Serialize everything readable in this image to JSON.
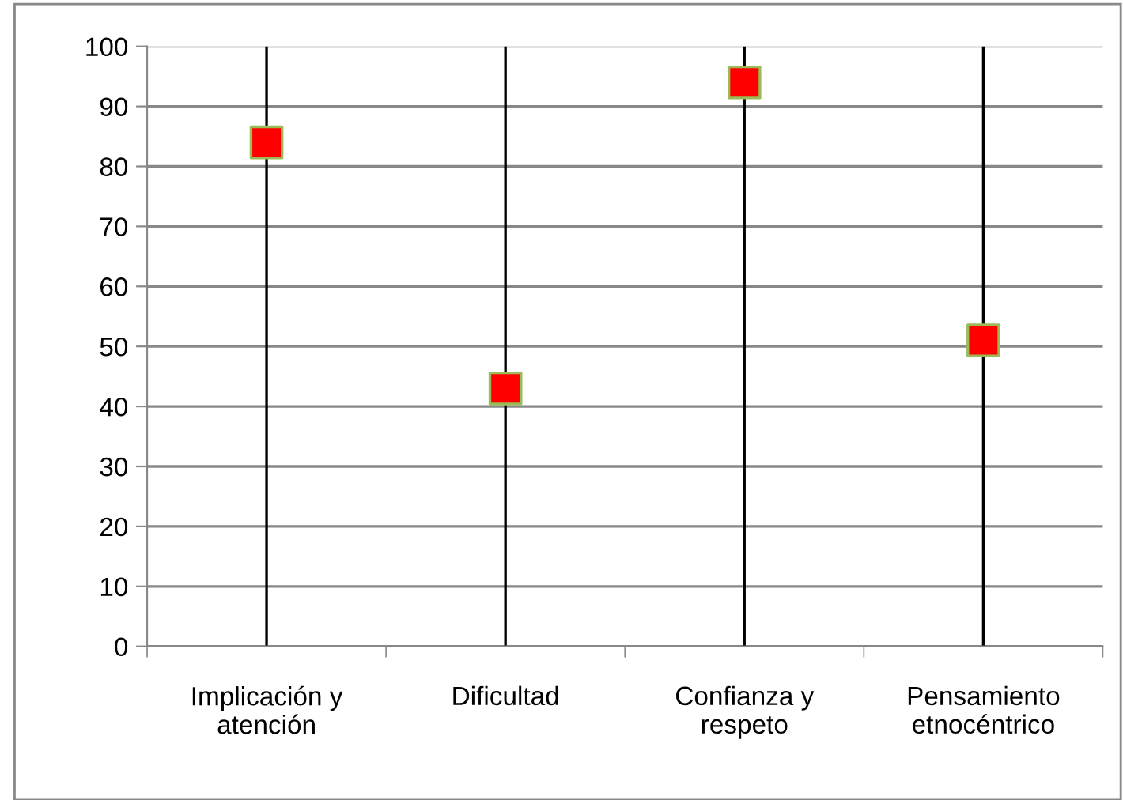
{
  "chart_data": {
    "type": "scatter",
    "categories": [
      "Implicación y\natención",
      "Dificultad",
      "Confianza y\nrespeto",
      "Pensamiento\netnocéntrico"
    ],
    "series": [
      {
        "color": "#ff0000",
        "values": [
          84,
          43,
          94,
          51
        ]
      }
    ],
    "marker": "square",
    "ylim": [
      0,
      100
    ],
    "yticks": [
      0,
      10,
      20,
      30,
      40,
      50,
      60,
      70,
      80,
      90,
      100
    ],
    "grid": true,
    "legend": false
  }
}
